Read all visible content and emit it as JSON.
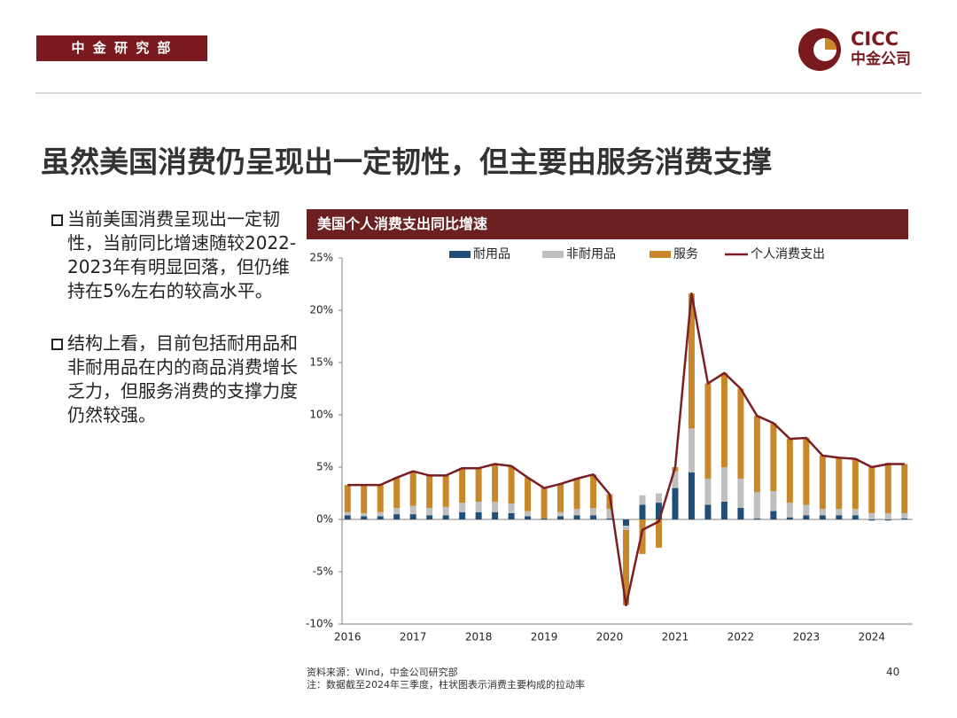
{
  "header": {
    "tag": "中 金 研 究 部",
    "logo_text": "CICC",
    "logo_subtext": "中金公司"
  },
  "title": "虽然美国消费仍呈现出一定韧性，但主要由服务消费支撑",
  "bullets": [
    "当前美国消费呈现出一定韧性，当前同比增速随较2022-2023年有明显回落，但仍维持在5%左右的较高水平。",
    "结构上看，目前包括耐用品和非耐用品在内的商品消费增长乏力，但服务消费的支撑力度仍然较强。"
  ],
  "chart_data": {
    "type": "bar",
    "stacked": true,
    "title": "美国个人消费支出同比增速",
    "categories": [
      "2016",
      null,
      null,
      null,
      "2017",
      null,
      null,
      null,
      "2018",
      null,
      null,
      null,
      "2019",
      null,
      null,
      null,
      "2020",
      null,
      null,
      null,
      "2021",
      null,
      null,
      null,
      "2022",
      null,
      null,
      null,
      "2023",
      null,
      null,
      null,
      "2024",
      null,
      null
    ],
    "series": [
      {
        "name": "耐用品",
        "color": "#1f4e79",
        "values": [
          0.4,
          0.3,
          0.3,
          0.5,
          0.5,
          0.4,
          0.4,
          0.7,
          0.7,
          0.7,
          0.6,
          0.3,
          0.1,
          0.3,
          0.4,
          0.4,
          0.1,
          -0.6,
          1.4,
          1.6,
          3.0,
          4.5,
          1.4,
          1.7,
          1.1,
          0.1,
          0.8,
          0.2,
          0.4,
          0.4,
          0.4,
          0.4,
          -0.1,
          -0.1,
          0.1
        ]
      },
      {
        "name": "非耐用品",
        "color": "#bfbfbf",
        "values": [
          0.3,
          0.3,
          0.4,
          0.6,
          0.8,
          0.7,
          0.8,
          0.9,
          1.0,
          1.0,
          0.9,
          0.5,
          -0.1,
          0.4,
          0.6,
          0.7,
          0.9,
          -0.4,
          0.9,
          0.9,
          1.6,
          4.2,
          2.5,
          3.3,
          2.8,
          2.5,
          1.9,
          1.4,
          1.0,
          0.6,
          0.6,
          0.6,
          0.6,
          0.6,
          0.5
        ]
      },
      {
        "name": "服务",
        "color": "#c8882a",
        "values": [
          2.6,
          2.7,
          2.6,
          2.9,
          3.3,
          3.1,
          3.0,
          3.3,
          3.2,
          3.6,
          3.6,
          3.2,
          3.0,
          2.7,
          2.9,
          3.2,
          1.4,
          -7.2,
          -3.3,
          -2.7,
          0.4,
          12.9,
          9.1,
          9.0,
          8.6,
          7.3,
          6.5,
          6.1,
          6.4,
          5.1,
          4.9,
          4.8,
          4.5,
          4.8,
          4.7
        ]
      },
      {
        "name": "个人消费支出",
        "color": "#7a1f24",
        "type": "line",
        "values": [
          3.3,
          3.3,
          3.3,
          4.0,
          4.6,
          4.2,
          4.2,
          4.9,
          4.9,
          5.3,
          5.1,
          4.0,
          3.0,
          3.4,
          3.9,
          4.3,
          2.4,
          -8.2,
          -1.0,
          -0.2,
          5.0,
          21.6,
          13.0,
          14.0,
          12.5,
          9.9,
          9.2,
          7.7,
          7.8,
          6.1,
          5.9,
          5.8,
          5.0,
          5.3,
          5.3
        ]
      }
    ],
    "ylim": [
      -10,
      25
    ],
    "yticks": [
      {
        "value": -10,
        "label": "-10%"
      },
      {
        "value": -5,
        "label": "-5%"
      },
      {
        "value": 0,
        "label": "0%"
      },
      {
        "value": 5,
        "label": "5%"
      },
      {
        "value": 10,
        "label": "10%"
      },
      {
        "value": 15,
        "label": "15%"
      },
      {
        "value": 20,
        "label": "20%"
      },
      {
        "value": 25,
        "label": "25%"
      }
    ],
    "legend": "top"
  },
  "footer": {
    "source": "资料来源：Wind，中金公司研究部",
    "note": "注：数据截至2024年三季度，柱状图表示消费主要构成的拉动率",
    "page": "40"
  }
}
